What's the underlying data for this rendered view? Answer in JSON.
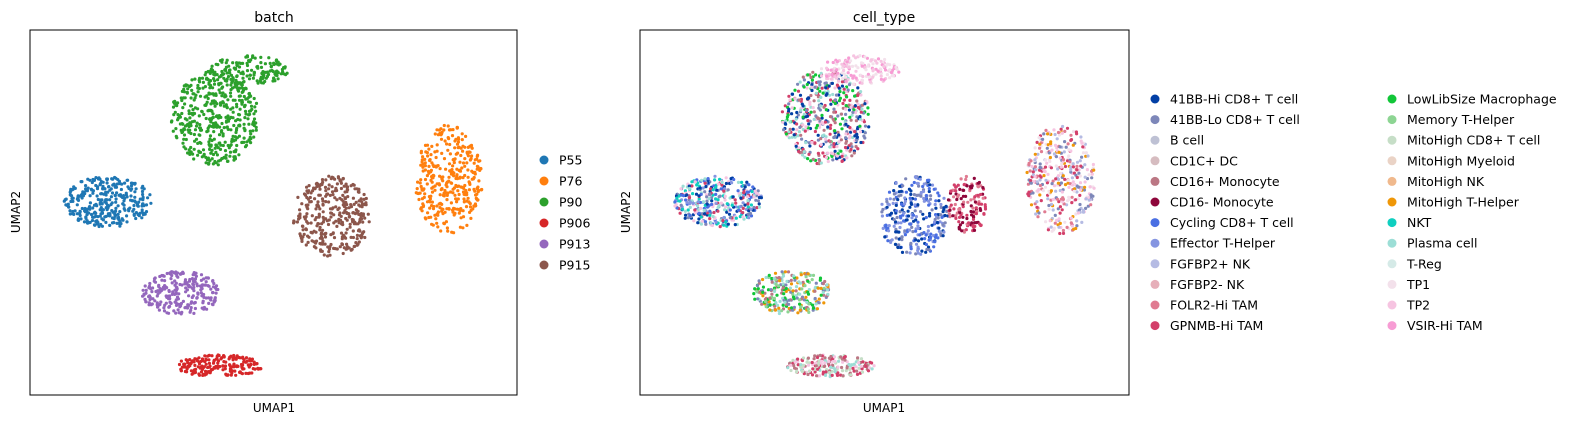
{
  "chart_data": [
    {
      "type": "scatter",
      "title": "batch",
      "xlabel": "UMAP1",
      "ylabel": "UMAP2",
      "xlim": [
        0,
        100
      ],
      "ylim": [
        0,
        100
      ],
      "grid": false,
      "legend_position": "right",
      "series": [
        {
          "name": "P55",
          "color": "#1f77b4"
        },
        {
          "name": "P76",
          "color": "#ff7f0e"
        },
        {
          "name": "P90",
          "color": "#2ca02c"
        },
        {
          "name": "P906",
          "color": "#d62728"
        },
        {
          "name": "P913",
          "color": "#9467bd"
        },
        {
          "name": "P915",
          "color": "#8c564b"
        }
      ],
      "clusters": [
        {
          "series": "P55",
          "x": 16,
          "y": 53,
          "rx": 9,
          "ry": 7,
          "n": 320
        },
        {
          "series": "P76",
          "x": 86,
          "y": 59,
          "rx": 7,
          "ry": 15,
          "n": 360
        },
        {
          "series": "P90",
          "x": 38,
          "y": 76,
          "rx": 9,
          "ry": 13,
          "n": 460
        },
        {
          "series": "P90",
          "x": 45,
          "y": 89,
          "rx": 8,
          "ry": 4,
          "n": 150
        },
        {
          "series": "P906",
          "x": 39,
          "y": 8,
          "rx": 9,
          "ry": 3,
          "n": 190
        },
        {
          "series": "P913",
          "x": 31,
          "y": 28,
          "rx": 8,
          "ry": 6,
          "n": 240
        },
        {
          "series": "P915",
          "x": 62,
          "y": 49,
          "rx": 8,
          "ry": 11,
          "n": 340
        }
      ]
    },
    {
      "type": "scatter",
      "title": "cell_type",
      "xlabel": "UMAP1",
      "ylabel": "UMAP2",
      "xlim": [
        0,
        100
      ],
      "ylim": [
        0,
        100
      ],
      "grid": false,
      "legend_position": "right",
      "series": [
        {
          "name": "41BB-Hi CD8+ T cell",
          "color": "#023fa5"
        },
        {
          "name": "41BB-Lo CD8+ T cell",
          "color": "#7d87b9"
        },
        {
          "name": "B cell",
          "color": "#bec1d4"
        },
        {
          "name": "CD1C+ DC",
          "color": "#d6bcc0"
        },
        {
          "name": "CD16+ Monocyte",
          "color": "#bb7784"
        },
        {
          "name": "CD16- Monocyte",
          "color": "#8e063b"
        },
        {
          "name": "Cycling CD8+ T cell",
          "color": "#4a6fe3"
        },
        {
          "name": "Effector T-Helper",
          "color": "#8595e1"
        },
        {
          "name": "FGFBP2+ NK",
          "color": "#b5bbe3"
        },
        {
          "name": "FGFBP2- NK",
          "color": "#e6afb9"
        },
        {
          "name": "FOLR2-Hi TAM",
          "color": "#e07b91"
        },
        {
          "name": "GPNMB-Hi TAM",
          "color": "#d33f6a"
        },
        {
          "name": "LowLibSize Macrophage",
          "color": "#11c638"
        },
        {
          "name": "Memory T-Helper",
          "color": "#8dd593"
        },
        {
          "name": "MitoHigh CD8+ T cell",
          "color": "#c6dec7"
        },
        {
          "name": "MitoHigh Myeloid",
          "color": "#ead3c6"
        },
        {
          "name": "MitoHigh NK",
          "color": "#f0b98d"
        },
        {
          "name": "MitoHigh T-Helper",
          "color": "#ef9708"
        },
        {
          "name": "NKT",
          "color": "#0fcfc0"
        },
        {
          "name": "Plasma cell",
          "color": "#9cded6"
        },
        {
          "name": "T-Reg",
          "color": "#d5eae7"
        },
        {
          "name": "TP1",
          "color": "#f3e1eb"
        },
        {
          "name": "TP2",
          "color": "#f6c4e1"
        },
        {
          "name": "VSIR-Hi TAM",
          "color": "#f79cd4"
        }
      ],
      "clusters": [
        {
          "x": 16,
          "y": 53,
          "rx": 9,
          "ry": 7,
          "n": 380,
          "mix": [
            "41BB-Hi CD8+ T cell",
            "Cycling CD8+ T cell",
            "Effector T-Helper",
            "41BB-Lo CD8+ T cell",
            "Plasma cell",
            "GPNMB-Hi TAM",
            "NKT",
            "TP2"
          ]
        },
        {
          "x": 86,
          "y": 59,
          "rx": 7,
          "ry": 15,
          "n": 380,
          "mix": [
            "TP1",
            "41BB-Lo CD8+ T cell",
            "FGFBP2+ NK",
            "FOLR2-Hi TAM",
            "GPNMB-Hi TAM",
            "MitoHigh T-Helper",
            "TP2"
          ]
        },
        {
          "x": 38,
          "y": 76,
          "rx": 9,
          "ry": 13,
          "n": 500,
          "mix": [
            "41BB-Lo CD8+ T cell",
            "41BB-Hi CD8+ T cell",
            "GPNMB-Hi TAM",
            "TP2",
            "LowLibSize Macrophage",
            "Plasma cell",
            "CD16+ Monocyte"
          ]
        },
        {
          "x": 45,
          "y": 89,
          "rx": 8,
          "ry": 4,
          "n": 170,
          "mix": [
            "TP2",
            "VSIR-Hi TAM",
            "TP1"
          ]
        },
        {
          "x": 39,
          "y": 8,
          "rx": 9,
          "ry": 3,
          "n": 200,
          "mix": [
            "GPNMB-Hi TAM",
            "MitoHigh CD8+ T cell",
            "TP2",
            "Plasma cell",
            "CD16+ Monocyte"
          ]
        },
        {
          "x": 31,
          "y": 28,
          "rx": 8,
          "ry": 6,
          "n": 260,
          "mix": [
            "LowLibSize Macrophage",
            "Plasma cell",
            "MitoHigh T-Helper",
            "41BB-Lo CD8+ T cell",
            "Memory T-Helper",
            "CD16+ Monocyte"
          ]
        },
        {
          "x": 56,
          "y": 49,
          "rx": 7,
          "ry": 11,
          "n": 300,
          "mix": [
            "41BB-Hi CD8+ T cell",
            "Effector T-Helper",
            "Cycling CD8+ T cell",
            "41BB-Lo CD8+ T cell"
          ]
        },
        {
          "x": 67,
          "y": 52,
          "rx": 4,
          "ry": 8,
          "n": 140,
          "mix": [
            "GPNMB-Hi TAM",
            "CD16- Monocyte",
            "FOLR2-Hi TAM"
          ]
        }
      ]
    }
  ]
}
